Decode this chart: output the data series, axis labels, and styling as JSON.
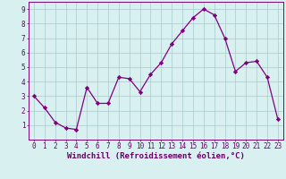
{
  "x": [
    0,
    1,
    2,
    3,
    4,
    5,
    6,
    7,
    8,
    9,
    10,
    11,
    12,
    13,
    14,
    15,
    16,
    17,
    18,
    19,
    20,
    21,
    22,
    23
  ],
  "y": [
    3.0,
    2.2,
    1.2,
    0.8,
    0.7,
    3.6,
    2.5,
    2.5,
    4.3,
    4.2,
    3.3,
    4.5,
    5.3,
    6.6,
    7.5,
    8.4,
    9.0,
    8.6,
    7.0,
    4.7,
    5.3,
    5.4,
    4.3,
    1.4
  ],
  "line_color": "#800080",
  "marker": "D",
  "marker_size": 2.2,
  "bg_color": "#d8f0f0",
  "grid_color": "#aac8cc",
  "xlabel": "Windchill (Refroidissement éolien,°C)",
  "xlim": [
    -0.5,
    23.5
  ],
  "ylim": [
    0,
    9.5
  ],
  "yticks": [
    1,
    2,
    3,
    4,
    5,
    6,
    7,
    8,
    9
  ],
  "xticks": [
    0,
    1,
    2,
    3,
    4,
    5,
    6,
    7,
    8,
    9,
    10,
    11,
    12,
    13,
    14,
    15,
    16,
    17,
    18,
    19,
    20,
    21,
    22,
    23
  ],
  "tick_fontsize": 5.5,
  "label_fontsize": 6.5,
  "label_color": "#660066",
  "spine_color": "#800080"
}
